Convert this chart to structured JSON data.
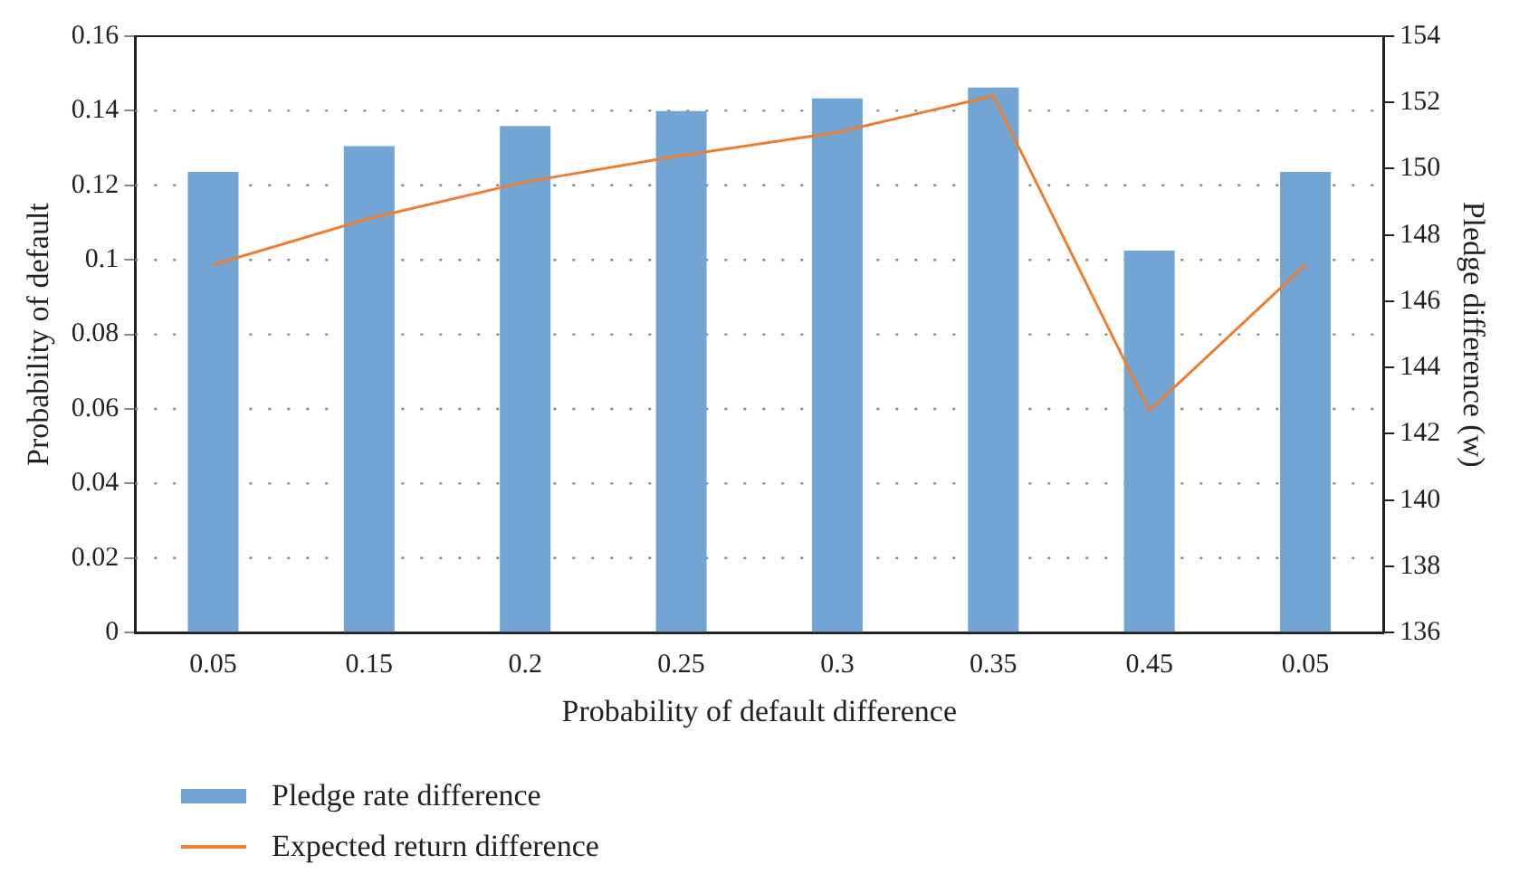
{
  "chart_data": {
    "type": "bar",
    "xlabel": "Probability of default difference",
    "ylabel": "Probability of default",
    "y2label": "Pledge difference (w)",
    "categories": [
      "0.05",
      "0.15",
      "0.2",
      "0.25",
      "0.3",
      "0.35",
      "0.45",
      "0.05"
    ],
    "series": [
      {
        "name": "Pledge rate difference",
        "color": "#72a4d4",
        "values": [
          0.1236,
          0.1305,
          0.1359,
          0.1399,
          0.1433,
          0.1462,
          0.1025,
          0.1236
        ]
      },
      {
        "name": "Expected return difference",
        "type": "line",
        "axis": "y2",
        "color": "#ed7d31",
        "values": [
          147.1,
          148.5,
          149.6,
          150.4,
          151.1,
          152.2,
          142.7,
          147.1
        ]
      }
    ],
    "ylim": [
      0,
      0.16
    ],
    "yticks": [
      0,
      0.02,
      0.04,
      0.06,
      0.08,
      0.1,
      0.12,
      0.14,
      0.16
    ],
    "y2lim": [
      136,
      154
    ],
    "y2ticks": [
      136,
      138,
      140,
      142,
      144,
      146,
      148,
      150,
      152,
      154
    ],
    "grid": "y",
    "legend": "bottom left",
    "marker": "none"
  }
}
